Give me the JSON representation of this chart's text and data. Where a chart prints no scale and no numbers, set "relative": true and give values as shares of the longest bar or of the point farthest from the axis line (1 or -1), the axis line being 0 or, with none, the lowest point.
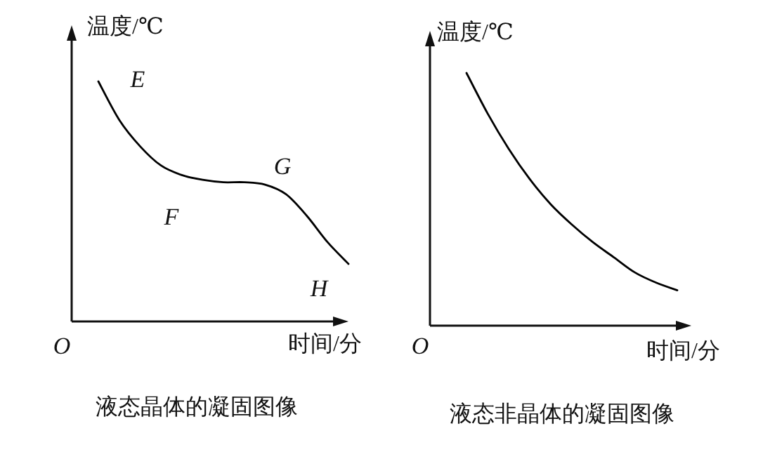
{
  "chart_data": [
    {
      "type": "line",
      "relative": true,
      "title": "液态晶体的凝固图像",
      "xlabel": "时间/分",
      "ylabel": "温度/℃",
      "annotations": [
        "E",
        "F",
        "G",
        "H",
        "O"
      ],
      "categories": [
        null,
        null,
        null,
        null,
        null,
        null,
        null,
        null,
        null,
        null,
        null,
        null,
        null
      ],
      "series": [
        {
          "color": "#000000",
          "values": [
            1,
            0.84,
            0.73,
            0.65,
            0.61,
            0.59,
            0.58,
            0.58,
            0.57,
            0.53,
            0.44,
            0.33,
            0.24
          ]
        }
      ]
    },
    {
      "type": "line",
      "relative": true,
      "title": "液态非晶体的凝固图像",
      "xlabel": "时间/分",
      "ylabel": "温度/℃",
      "annotations": [
        "O"
      ],
      "categories": [
        null,
        null,
        null,
        null,
        null,
        null,
        null,
        null,
        null,
        null,
        null
      ],
      "series": [
        {
          "color": "#000000",
          "values": [
            1,
            0.84,
            0.7,
            0.58,
            0.48,
            0.4,
            0.33,
            0.27,
            0.21,
            0.17,
            0.14
          ]
        }
      ]
    }
  ]
}
